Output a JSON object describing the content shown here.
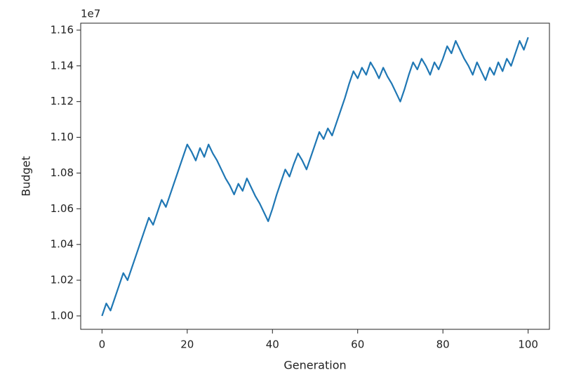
{
  "chart_data": {
    "type": "line",
    "x_label": "Generation",
    "y_label": "Budget",
    "y_offset_text": "1e7",
    "x": [
      0,
      1,
      2,
      3,
      4,
      5,
      6,
      7,
      8,
      9,
      10,
      11,
      12,
      13,
      14,
      15,
      16,
      17,
      18,
      19,
      20,
      21,
      22,
      23,
      24,
      25,
      26,
      27,
      28,
      29,
      30,
      31,
      32,
      33,
      34,
      35,
      36,
      37,
      38,
      39,
      40,
      41,
      42,
      43,
      44,
      45,
      46,
      47,
      48,
      49,
      50,
      51,
      52,
      53,
      54,
      55,
      56,
      57,
      58,
      59,
      60,
      61,
      62,
      63,
      64,
      65,
      66,
      67,
      68,
      69,
      70,
      71,
      72,
      73,
      74,
      75,
      76,
      77,
      78,
      79,
      80,
      81,
      82,
      83,
      84,
      85,
      86,
      87,
      88,
      89,
      90,
      91,
      92,
      93,
      94,
      95,
      96,
      97,
      98,
      99,
      100
    ],
    "values": [
      1.0,
      1.007,
      1.003,
      1.01,
      1.017,
      1.024,
      1.02,
      1.027,
      1.034,
      1.041,
      1.048,
      1.055,
      1.051,
      1.058,
      1.065,
      1.061,
      1.068,
      1.075,
      1.082,
      1.089,
      1.096,
      1.092,
      1.087,
      1.094,
      1.089,
      1.096,
      1.091,
      1.087,
      1.082,
      1.077,
      1.073,
      1.068,
      1.074,
      1.07,
      1.077,
      1.072,
      1.067,
      1.063,
      1.058,
      1.053,
      1.06,
      1.068,
      1.075,
      1.082,
      1.078,
      1.085,
      1.091,
      1.087,
      1.082,
      1.089,
      1.096,
      1.103,
      1.099,
      1.105,
      1.101,
      1.108,
      1.115,
      1.122,
      1.13,
      1.137,
      1.133,
      1.139,
      1.135,
      1.142,
      1.138,
      1.133,
      1.139,
      1.134,
      1.13,
      1.125,
      1.12,
      1.127,
      1.135,
      1.142,
      1.138,
      1.144,
      1.14,
      1.135,
      1.142,
      1.138,
      1.144,
      1.151,
      1.147,
      1.154,
      1.149,
      1.144,
      1.14,
      1.135,
      1.142,
      1.137,
      1.132,
      1.139,
      1.135,
      1.142,
      1.137,
      1.144,
      1.14,
      1.147,
      1.154,
      1.149,
      1.156
    ],
    "color": "#1f77b4",
    "xlim": [
      -5,
      105
    ],
    "xticks": [
      0,
      20,
      40,
      60,
      80,
      100
    ],
    "ylim": [
      0.9925,
      1.1639
    ],
    "yticks": [
      {
        "value": 1.0,
        "label": "1.00"
      },
      {
        "value": 1.02,
        "label": "1.02"
      },
      {
        "value": 1.04,
        "label": "1.04"
      },
      {
        "value": 1.06,
        "label": "1.06"
      },
      {
        "value": 1.08,
        "label": "1.08"
      },
      {
        "value": 1.1,
        "label": "1.10"
      },
      {
        "value": 1.12,
        "label": "1.12"
      },
      {
        "value": 1.14,
        "label": "1.14"
      },
      {
        "value": 1.16,
        "label": "1.16"
      }
    ],
    "grid": false
  }
}
